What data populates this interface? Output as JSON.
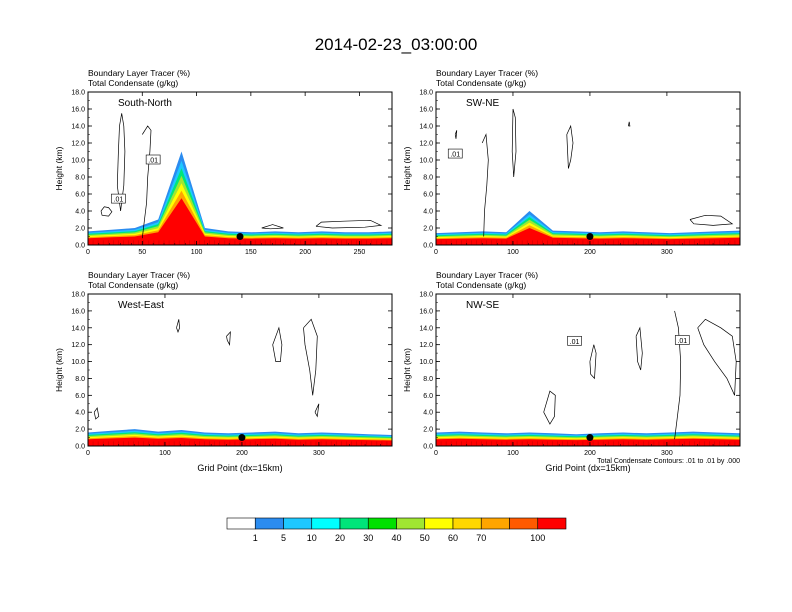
{
  "title": "2014-02-23_03:00:00",
  "footnote": "Total Condensate Contours: .01 to .01 by .000",
  "colorbar": {
    "labels": [
      "1",
      "5",
      "10",
      "20",
      "30",
      "40",
      "50",
      "60",
      "70",
      "100"
    ],
    "colors": [
      "#ffffff",
      "#2b8cf0",
      "#1ec8ff",
      "#00ffff",
      "#00e57a",
      "#00e000",
      "#a0e632",
      "#ffff00",
      "#ffd700",
      "#ffa500",
      "#ff5a00",
      "#ff0000"
    ]
  },
  "chart_data": [
    {
      "type": "heatmap",
      "panel": "South-North",
      "title_lines": [
        "Boundary Layer Tracer   (%)",
        "Total Condensate   (g/kg)"
      ],
      "ylabel": "Height (km)",
      "xlabel": "",
      "ylim": [
        0,
        18
      ],
      "yticks": [
        "0.0",
        "2.0",
        "4.0",
        "6.0",
        "8.0",
        "10.0",
        "12.0",
        "14.0",
        "16.0",
        "18.0"
      ],
      "xlim": [
        0,
        280
      ],
      "xticks": [
        0,
        50,
        100,
        150,
        200,
        250
      ],
      "marker_x": 140,
      "contour_labels": [
        ".01",
        ".01"
      ],
      "boundary_layer_top_km": [
        1.6,
        1.8,
        2.0,
        3.0,
        11.0,
        2.0,
        1.6,
        1.5,
        1.6,
        1.5,
        1.6,
        1.5,
        1.5,
        1.6
      ]
    },
    {
      "type": "heatmap",
      "panel": "SW-NE",
      "title_lines": [
        "Boundary Layer Tracer   (%)",
        "Total Condensate   (g/kg)"
      ],
      "ylabel": "Height (km)",
      "xlabel": "",
      "ylim": [
        0,
        18
      ],
      "yticks": [
        "0.0",
        "2.0",
        "4.0",
        "6.0",
        "8.0",
        "10.0",
        "12.0",
        "14.0",
        "16.0",
        "18.0"
      ],
      "xlim": [
        0,
        395
      ],
      "xticks": [
        0,
        100,
        200,
        300
      ],
      "marker_x": 200,
      "contour_labels": [
        ".01"
      ],
      "boundary_layer_top_km": [
        1.4,
        1.5,
        1.6,
        1.5,
        4.0,
        1.7,
        1.6,
        1.5,
        1.6,
        1.5,
        1.4,
        1.5,
        1.6,
        1.7
      ]
    },
    {
      "type": "heatmap",
      "panel": "West-East",
      "title_lines": [
        "Boundary Layer Tracer   (%)",
        "Total Condensate   (g/kg)"
      ],
      "ylabel": "Height (km)",
      "xlabel": "Grid Point (dx=15km)",
      "ylim": [
        0,
        18
      ],
      "yticks": [
        "0.0",
        "2.0",
        "4.0",
        "6.0",
        "8.0",
        "10.0",
        "12.0",
        "14.0",
        "16.0",
        "18.0"
      ],
      "xlim": [
        0,
        395
      ],
      "xticks": [
        0,
        100,
        200,
        300
      ],
      "marker_x": 200,
      "contour_labels": [],
      "boundary_layer_top_km": [
        1.6,
        1.8,
        2.0,
        1.7,
        1.9,
        1.6,
        1.5,
        1.6,
        1.7,
        1.5,
        1.6,
        1.5,
        1.4,
        1.3
      ]
    },
    {
      "type": "heatmap",
      "panel": "NW-SE",
      "title_lines": [
        "Boundary Layer Tracer   (%)",
        "Total Condensate   (g/kg)"
      ],
      "ylabel": "Height (km)",
      "xlabel": "Grid Point (dx=15km)",
      "ylim": [
        0,
        18
      ],
      "yticks": [
        "0.0",
        "2.0",
        "4.0",
        "6.0",
        "8.0",
        "10.0",
        "12.0",
        "14.0",
        "16.0",
        "18.0"
      ],
      "xlim": [
        0,
        395
      ],
      "xticks": [
        0,
        100,
        200,
        300
      ],
      "marker_x": 200,
      "contour_labels": [
        ".01",
        ".01"
      ],
      "boundary_layer_top_km": [
        1.6,
        1.7,
        1.6,
        1.5,
        1.6,
        1.5,
        1.4,
        1.5,
        1.6,
        1.5,
        1.6,
        1.7,
        1.6,
        1.5
      ]
    }
  ]
}
